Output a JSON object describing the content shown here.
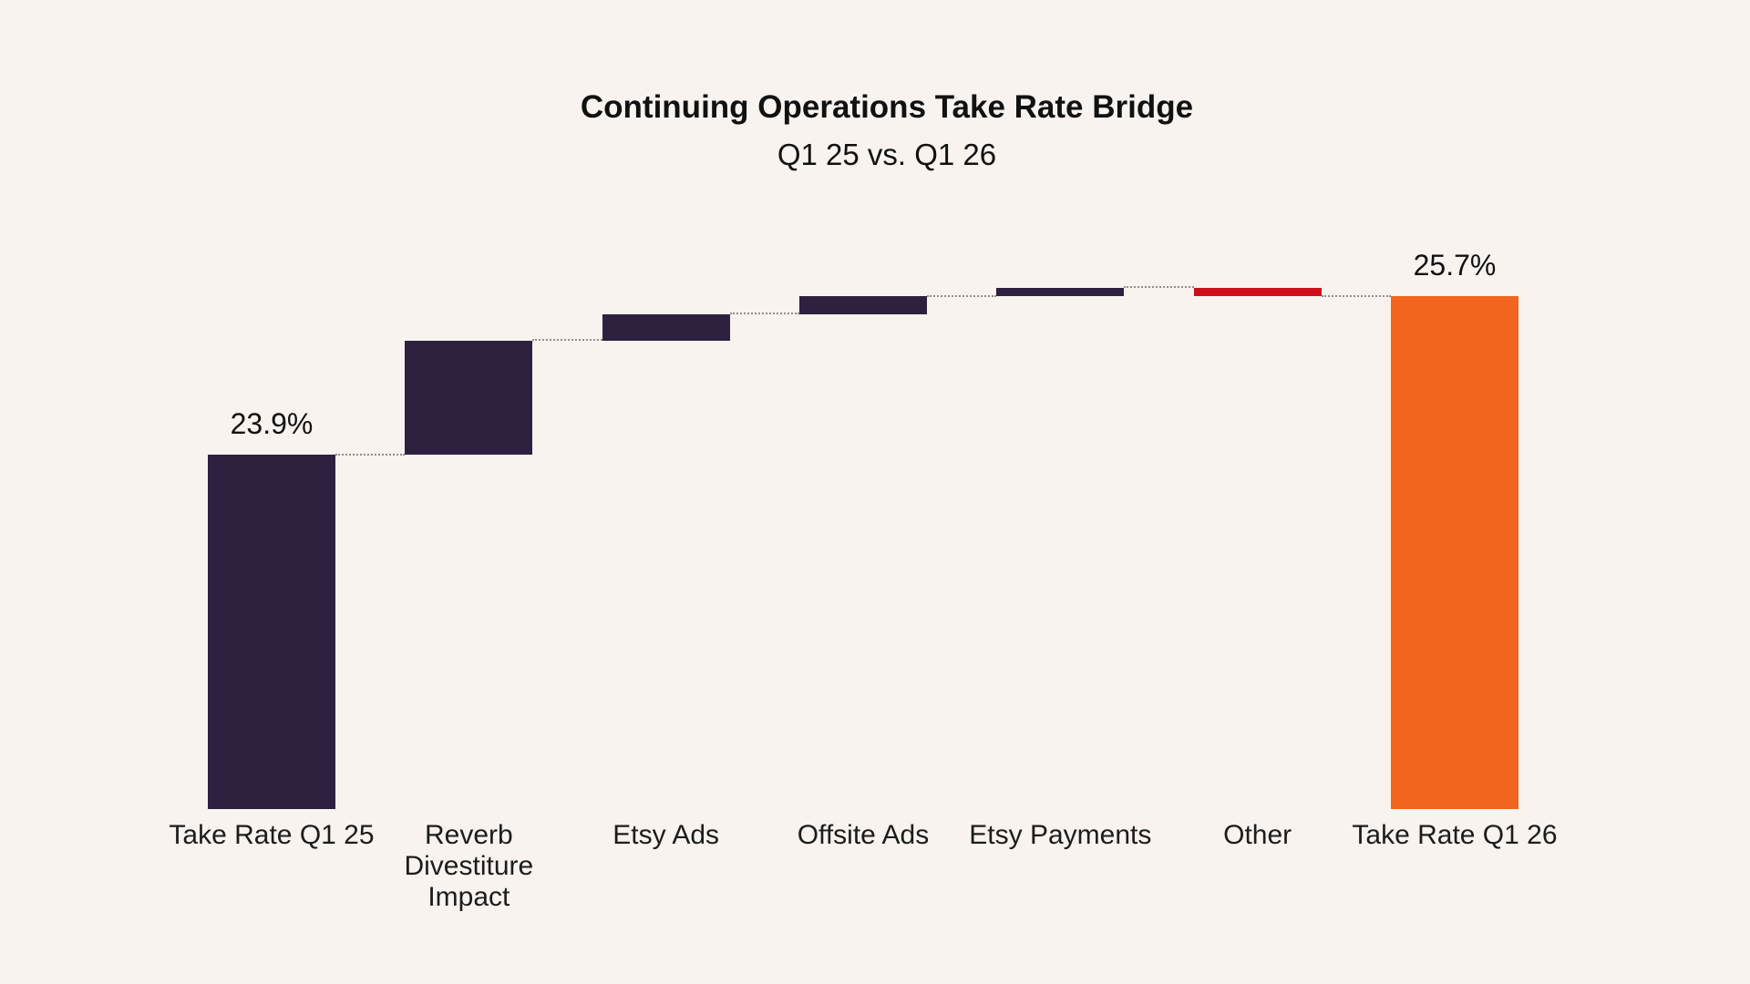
{
  "chart_data": {
    "type": "waterfall",
    "title": "Continuing Operations Take Rate Bridge",
    "subtitle": "Q1 25 vs. Q1 26",
    "unit": "%",
    "categories": [
      "Take Rate Q1 25",
      "Reverb Divestiture Impact",
      "Etsy Ads",
      "Offsite Ads",
      "Etsy Payments",
      "Other",
      "Take Rate Q1 26"
    ],
    "bars": [
      {
        "label": "Take Rate Q1 25",
        "kind": "total",
        "start": null,
        "end": 23.9,
        "value": 23.9,
        "color_key": "dark",
        "data_label": "23.9%"
      },
      {
        "label": "Reverb Divestiture Impact",
        "kind": "increase",
        "start": 23.9,
        "end": 25.2,
        "value": 1.3,
        "color_key": "dark",
        "data_label": null
      },
      {
        "label": "Etsy Ads",
        "kind": "increase",
        "start": 25.2,
        "end": 25.5,
        "value": 0.3,
        "color_key": "dark",
        "data_label": null
      },
      {
        "label": "Offsite Ads",
        "kind": "increase",
        "start": 25.5,
        "end": 25.7,
        "value": 0.2,
        "color_key": "dark",
        "data_label": null
      },
      {
        "label": "Etsy Payments",
        "kind": "increase",
        "start": 25.7,
        "end": 25.8,
        "value": 0.1,
        "color_key": "dark",
        "data_label": null
      },
      {
        "label": "Other",
        "kind": "decrease",
        "start": 25.8,
        "end": 25.7,
        "value": -0.1,
        "color_key": "red",
        "data_label": null
      },
      {
        "label": "Take Rate Q1 26",
        "kind": "total",
        "start": null,
        "end": 25.7,
        "value": 25.7,
        "color_key": "orange",
        "data_label": "25.7%"
      }
    ],
    "colors": {
      "dark": "#2E2140",
      "red": "#CE1019",
      "orange": "#F1651E"
    },
    "connector_color": "#8E8E8E",
    "background": "#F8F3EF",
    "text_color": "#1C1C1C",
    "ylim": [
      19.88,
      29.0
    ],
    "grid": false,
    "legend": false,
    "axis_lines": false
  }
}
